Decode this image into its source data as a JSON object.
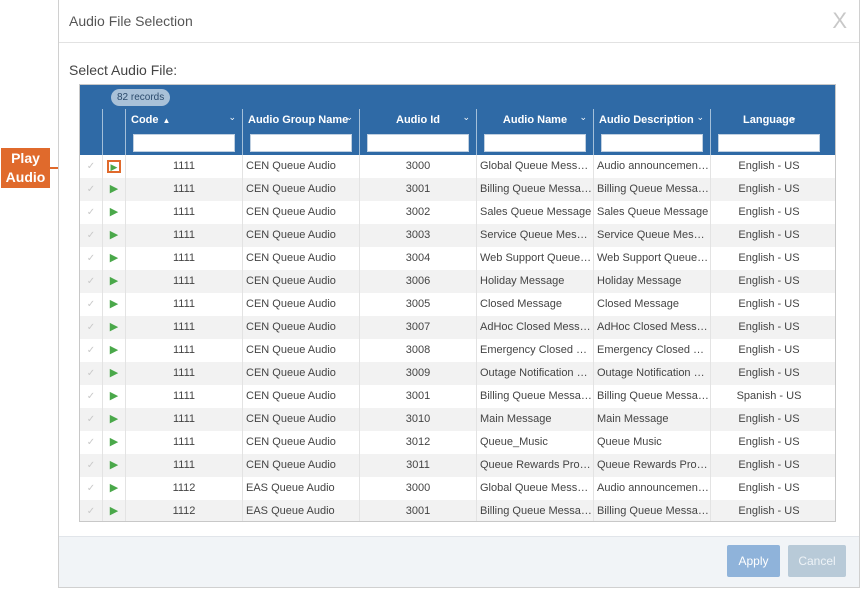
{
  "dialog": {
    "title": "Audio File Selection",
    "close_glyph": "X",
    "select_label": "Select Audio File:"
  },
  "grid": {
    "records_badge": "82 records",
    "columns": {
      "code": "Code",
      "audio_group_name": "Audio Group Name",
      "audio_id": "Audio Id",
      "audio_name": "Audio Name",
      "audio_description": "Audio Description",
      "language": "Language"
    },
    "sort_indicator": "▲",
    "rows": [
      {
        "code": "1111",
        "group": "CEN Queue Audio",
        "id": "3000",
        "name": "Global Queue Message",
        "description": "Audio announcement ...",
        "language": "English - US"
      },
      {
        "code": "1111",
        "group": "CEN Queue Audio",
        "id": "3001",
        "name": "Billing Queue Message",
        "description": "Billing Queue Message",
        "language": "English - US"
      },
      {
        "code": "1111",
        "group": "CEN Queue Audio",
        "id": "3002",
        "name": "Sales Queue Message",
        "description": "Sales Queue Message",
        "language": "English - US"
      },
      {
        "code": "1111",
        "group": "CEN Queue Audio",
        "id": "3003",
        "name": "Service Queue Message",
        "description": "Service Queue Message",
        "language": "English - US"
      },
      {
        "code": "1111",
        "group": "CEN Queue Audio",
        "id": "3004",
        "name": "Web Support Queue M...",
        "description": "Web Support Queue M...",
        "language": "English - US"
      },
      {
        "code": "1111",
        "group": "CEN Queue Audio",
        "id": "3006",
        "name": "Holiday Message",
        "description": "Holiday Message",
        "language": "English - US"
      },
      {
        "code": "1111",
        "group": "CEN Queue Audio",
        "id": "3005",
        "name": "Closed Message",
        "description": "Closed Message",
        "language": "English - US"
      },
      {
        "code": "1111",
        "group": "CEN Queue Audio",
        "id": "3007",
        "name": "AdHoc Closed Message",
        "description": "AdHoc Closed Message",
        "language": "English - US"
      },
      {
        "code": "1111",
        "group": "CEN Queue Audio",
        "id": "3008",
        "name": "Emergency Closed Me...",
        "description": "Emergency Closed Me...",
        "language": "English - US"
      },
      {
        "code": "1111",
        "group": "CEN Queue Audio",
        "id": "3009",
        "name": "Outage Notification M...",
        "description": "Outage Notification M...",
        "language": "English - US"
      },
      {
        "code": "1111",
        "group": "CEN Queue Audio",
        "id": "3001",
        "name": "Billing Queue Message",
        "description": "Billing Queue Message",
        "language": "Spanish - US"
      },
      {
        "code": "1111",
        "group": "CEN Queue Audio",
        "id": "3010",
        "name": "Main Message",
        "description": "Main Message",
        "language": "English - US"
      },
      {
        "code": "1111",
        "group": "CEN Queue Audio",
        "id": "3012",
        "name": "Queue_Music",
        "description": "Queue Music",
        "language": "English - US"
      },
      {
        "code": "1111",
        "group": "CEN Queue Audio",
        "id": "3011",
        "name": "Queue Rewards Progr...",
        "description": "Queue Rewards Progr...",
        "language": "English - US"
      },
      {
        "code": "1112",
        "group": "EAS Queue Audio",
        "id": "3000",
        "name": "Global Queue Message",
        "description": "Audio announcement ...",
        "language": "English - US"
      },
      {
        "code": "1112",
        "group": "EAS Queue Audio",
        "id": "3001",
        "name": "Billing Queue Message",
        "description": "Billing Queue Message",
        "language": "English - US"
      }
    ],
    "check_glyph": "✓",
    "play_glyph": "▶"
  },
  "footer": {
    "apply_label": "Apply",
    "cancel_label": "Cancel"
  },
  "callout": {
    "line1": "Play",
    "line2": "Audio"
  },
  "colors": {
    "header_blue": "#2f6aa6",
    "play_green": "#4aa84a",
    "callout_orange": "#e06a2c"
  }
}
